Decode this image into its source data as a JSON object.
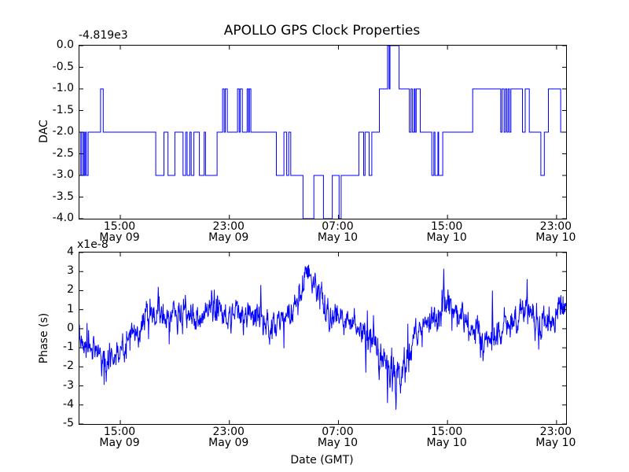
{
  "figure": {
    "title": "APOLLO GPS Clock Properties",
    "xlabel": "Date (GMT)",
    "background": "#ffffff",
    "line_color": "#0000ff"
  },
  "top_plot": {
    "ylabel": "DAC",
    "offset_text": "-4.819e3",
    "yticks": [
      "0.0",
      "-0.5",
      "-1.0",
      "-1.5",
      "-2.0",
      "-2.5",
      "-3.0",
      "-3.5",
      "-4.0"
    ]
  },
  "bottom_plot": {
    "ylabel": "Phase (s)",
    "scale_text": "x1e-8",
    "yticks": [
      "4",
      "3",
      "2",
      "1",
      "0",
      "-1",
      "-2",
      "-3",
      "-4",
      "-5"
    ]
  },
  "xticks": [
    {
      "time": "15:00",
      "date": "May 09"
    },
    {
      "time": "23:00",
      "date": "May 09"
    },
    {
      "time": "07:00",
      "date": "May 10"
    },
    {
      "time": "15:00",
      "date": "May 10"
    },
    {
      "time": "23:00",
      "date": "May 10"
    }
  ],
  "chart_data": [
    {
      "type": "line",
      "subplot": "top",
      "title": "APOLLO GPS Clock Properties",
      "ylabel": "DAC",
      "style": "steps",
      "line_color": "#0000ff",
      "y_offset_text": "-4.819e3",
      "y_offset_value": -4819,
      "ylim": [
        -4.0,
        0.0
      ],
      "x_unit": "hours since May 09 12:00 GMT",
      "xlim": [
        0,
        35.7
      ],
      "xtick_hours": [
        3,
        11,
        19,
        27,
        35
      ],
      "steps": [
        [
          0.0,
          -3
        ],
        [
          0.1,
          -2
        ],
        [
          0.18,
          -3
        ],
        [
          0.3,
          -2
        ],
        [
          0.36,
          -3
        ],
        [
          0.44,
          -2
        ],
        [
          0.52,
          -3
        ],
        [
          0.64,
          -2
        ],
        [
          1.55,
          -1
        ],
        [
          1.75,
          -2
        ],
        [
          5.6,
          -3
        ],
        [
          6.2,
          -2
        ],
        [
          6.5,
          -3
        ],
        [
          7.0,
          -2
        ],
        [
          7.6,
          -3
        ],
        [
          7.8,
          -2
        ],
        [
          7.9,
          -3
        ],
        [
          8.1,
          -2
        ],
        [
          8.2,
          -3
        ],
        [
          8.4,
          -2
        ],
        [
          8.8,
          -3
        ],
        [
          9.15,
          -2
        ],
        [
          9.25,
          -3
        ],
        [
          10.1,
          -2
        ],
        [
          10.5,
          -1
        ],
        [
          10.62,
          -2
        ],
        [
          10.7,
          -1
        ],
        [
          10.85,
          -2
        ],
        [
          11.6,
          -1
        ],
        [
          11.72,
          -2
        ],
        [
          11.8,
          -1
        ],
        [
          11.95,
          -2
        ],
        [
          12.3,
          -1
        ],
        [
          12.4,
          -2
        ],
        [
          12.47,
          -1
        ],
        [
          12.58,
          -2
        ],
        [
          14.45,
          -3
        ],
        [
          15.0,
          -2
        ],
        [
          15.2,
          -3
        ],
        [
          15.35,
          -2
        ],
        [
          15.5,
          -3
        ],
        [
          16.4,
          -4
        ],
        [
          17.2,
          -3
        ],
        [
          17.9,
          -4
        ],
        [
          18.55,
          -3
        ],
        [
          19.05,
          -4
        ],
        [
          19.2,
          -3
        ],
        [
          20.5,
          -2
        ],
        [
          20.85,
          -3
        ],
        [
          20.95,
          -2
        ],
        [
          21.25,
          -3
        ],
        [
          21.45,
          -2
        ],
        [
          22.0,
          -1
        ],
        [
          22.6,
          0
        ],
        [
          22.72,
          -1
        ],
        [
          22.78,
          0
        ],
        [
          23.45,
          -1
        ],
        [
          24.2,
          -2
        ],
        [
          24.32,
          -1
        ],
        [
          24.42,
          -2
        ],
        [
          24.55,
          -1
        ],
        [
          24.62,
          -2
        ],
        [
          24.7,
          -1
        ],
        [
          25.0,
          -2
        ],
        [
          25.85,
          -3
        ],
        [
          26.0,
          -2
        ],
        [
          26.08,
          -3
        ],
        [
          26.3,
          -2
        ],
        [
          26.35,
          -3
        ],
        [
          26.65,
          -2
        ],
        [
          28.85,
          -1
        ],
        [
          30.9,
          -2
        ],
        [
          31.0,
          -1
        ],
        [
          31.15,
          -2
        ],
        [
          31.25,
          -1
        ],
        [
          31.35,
          -2
        ],
        [
          31.45,
          -1
        ],
        [
          31.55,
          -2
        ],
        [
          31.65,
          -1
        ],
        [
          32.5,
          -2
        ],
        [
          32.7,
          -1
        ],
        [
          33.0,
          -2
        ],
        [
          33.85,
          -3
        ],
        [
          34.1,
          -2
        ],
        [
          34.4,
          -1
        ],
        [
          35.3,
          -2
        ]
      ]
    },
    {
      "type": "line",
      "subplot": "bottom",
      "ylabel": "Phase (s)",
      "xlabel": "Date (GMT)",
      "line_color": "#0000ff",
      "y_scale_text": "x1e-8",
      "y_scale": 1e-08,
      "ylim": [
        -5,
        4
      ],
      "x_unit": "hours since May 09 12:00 GMT",
      "xlim": [
        0,
        35.7
      ],
      "xtick_hours": [
        3,
        11,
        19,
        27,
        35
      ],
      "trend": [
        [
          0,
          -0.7
        ],
        [
          0.7,
          -0.9
        ],
        [
          1.0,
          -1.1
        ],
        [
          1.4,
          -1.0
        ],
        [
          1.7,
          -1.7
        ],
        [
          1.95,
          -2.0
        ],
        [
          2.2,
          -1.6
        ],
        [
          2.6,
          -1.4
        ],
        [
          3.0,
          -1.1
        ],
        [
          3.5,
          -0.6
        ],
        [
          4.0,
          -0.3
        ],
        [
          4.3,
          0.1
        ],
        [
          4.7,
          0.4
        ],
        [
          5.1,
          0.3
        ],
        [
          5.5,
          0.5
        ],
        [
          5.8,
          0.8
        ],
        [
          6.2,
          0.6
        ],
        [
          6.8,
          0.8
        ],
        [
          7.3,
          0.6
        ],
        [
          7.8,
          0.8
        ],
        [
          8.3,
          0.6
        ],
        [
          8.8,
          0.7
        ],
        [
          9.3,
          0.9
        ],
        [
          9.9,
          0.9
        ],
        [
          10.3,
          0.7
        ],
        [
          10.8,
          0.6
        ],
        [
          11.3,
          0.8
        ],
        [
          11.9,
          0.6
        ],
        [
          12.4,
          0.5
        ],
        [
          12.9,
          0.6
        ],
        [
          13.4,
          0.4
        ],
        [
          13.9,
          0.2
        ],
        [
          14.4,
          0.3
        ],
        [
          14.9,
          0.5
        ],
        [
          15.4,
          0.7
        ],
        [
          15.9,
          1.1
        ],
        [
          16.3,
          1.8
        ],
        [
          16.6,
          2.5
        ],
        [
          16.8,
          2.8
        ],
        [
          17.0,
          2.5
        ],
        [
          17.3,
          2.2
        ],
        [
          17.7,
          1.7
        ],
        [
          18.1,
          1.2
        ],
        [
          18.5,
          0.9
        ],
        [
          19.0,
          0.7
        ],
        [
          19.5,
          0.5
        ],
        [
          20.0,
          0.3
        ],
        [
          20.5,
          0.1
        ],
        [
          21.0,
          -0.2
        ],
        [
          21.5,
          -0.5
        ],
        [
          21.9,
          -1.1
        ],
        [
          22.2,
          -1.9
        ],
        [
          22.5,
          -2.2
        ],
        [
          22.9,
          -2.4
        ],
        [
          23.2,
          -2.7
        ],
        [
          23.5,
          -2.3
        ],
        [
          23.8,
          -2.0
        ],
        [
          24.1,
          -1.4
        ],
        [
          24.4,
          -0.9
        ],
        [
          24.7,
          -0.5
        ],
        [
          25.1,
          -0.1
        ],
        [
          25.5,
          0.3
        ],
        [
          25.9,
          0.5
        ],
        [
          26.3,
          0.6
        ],
        [
          26.6,
          1.1
        ],
        [
          26.8,
          1.6
        ],
        [
          27.0,
          1.4
        ],
        [
          27.3,
          1.1
        ],
        [
          27.7,
          0.9
        ],
        [
          28.1,
          0.6
        ],
        [
          28.5,
          0.4
        ],
        [
          28.9,
          0.1
        ],
        [
          29.3,
          -0.2
        ],
        [
          29.7,
          -0.5
        ],
        [
          30.1,
          -0.6
        ],
        [
          30.5,
          -0.4
        ],
        [
          30.9,
          -0.1
        ],
        [
          31.3,
          0.2
        ],
        [
          31.7,
          0.4
        ],
        [
          32.1,
          0.6
        ],
        [
          32.5,
          0.9
        ],
        [
          32.8,
          1.2
        ],
        [
          33.1,
          0.8
        ],
        [
          33.5,
          0.4
        ],
        [
          33.9,
          0.2
        ],
        [
          34.3,
          0.3
        ],
        [
          34.7,
          0.6
        ],
        [
          35.1,
          0.8
        ],
        [
          35.7,
          1.1
        ]
      ],
      "spikes": [
        [
          1.62,
          -2.5
        ],
        [
          5.78,
          2.2
        ],
        [
          9.9,
          2.05
        ],
        [
          13.3,
          2.3
        ],
        [
          16.75,
          3.3
        ],
        [
          21.0,
          -2.3
        ],
        [
          22.6,
          -3.9
        ],
        [
          22.95,
          -3.3
        ],
        [
          23.22,
          -4.25
        ],
        [
          23.55,
          -3.4
        ],
        [
          26.72,
          3.15
        ],
        [
          29.6,
          -1.7
        ],
        [
          30.3,
          2.0
        ],
        [
          32.85,
          2.6
        ]
      ],
      "noise": {
        "seed": 7,
        "ar": 0.55,
        "sigma": 0.33,
        "n_points": 1600,
        "spike_prob": 0.006,
        "boost": {
          "t0": 21.8,
          "t1": 23.8,
          "factor": 1.5
        }
      }
    }
  ]
}
